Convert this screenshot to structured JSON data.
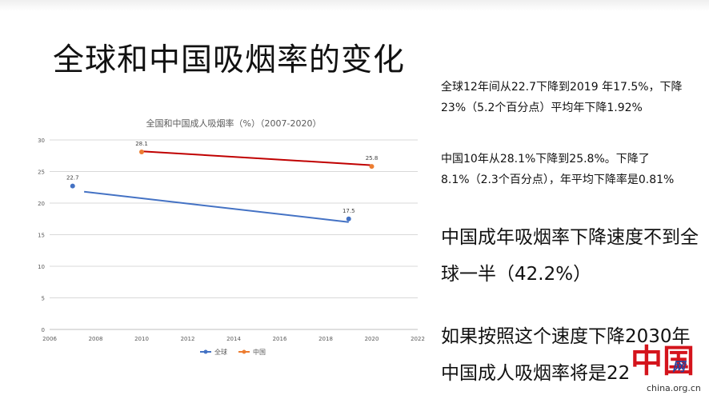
{
  "slide": {
    "title": "全球和中国吸烟率的变化",
    "paragraphs": [
      "全球12年间从22.7下降到2019 年17.5%，下降23%（5.2个百分点）平均年下降1.92%",
      "中国10年从28.1%下降到25.8%。下降了8.1%（2.3个百分点），年平均下降率是0.81%"
    ],
    "statements": [
      "中国成年吸烟率下降速度不到全球一半（42.2%）",
      "如果按照这个速度下降2030年中国成人吸烟率将是22"
    ]
  },
  "logo": {
    "mark": "中国",
    "net": "网",
    "url": "china.org.cn"
  },
  "chart_data": {
    "type": "scatter",
    "title": "全国和中国成人吸烟率（%）（2007-2020）",
    "xlim": [
      2006,
      2022
    ],
    "ylim": [
      0,
      30
    ],
    "x_ticks": [
      "2006",
      "2008",
      "2010",
      "2012",
      "2014",
      "2016",
      "2018",
      "2020",
      "2022"
    ],
    "y_ticks": [
      "0",
      "5",
      "10",
      "15",
      "20",
      "25",
      "30"
    ],
    "grid": true,
    "legend_position": "bottom",
    "series": [
      {
        "name": "全球",
        "color": "#4472c4",
        "points": [
          {
            "x": 2007,
            "y": 22.7,
            "label": "22.7"
          },
          {
            "x": 2019,
            "y": 17.5,
            "label": "17.5"
          }
        ],
        "trendline": {
          "from": [
            2007.5,
            21.8
          ],
          "to": [
            2019,
            17.0
          ]
        }
      },
      {
        "name": "中国",
        "color": "#ed7d31",
        "trend_color": "#c00000",
        "points": [
          {
            "x": 2010,
            "y": 28.1,
            "label": "28.1"
          },
          {
            "x": 2020,
            "y": 25.8,
            "label": "25.8"
          }
        ],
        "trendline": {
          "from": [
            2010,
            28.2
          ],
          "to": [
            2020,
            26.0
          ]
        }
      }
    ]
  }
}
